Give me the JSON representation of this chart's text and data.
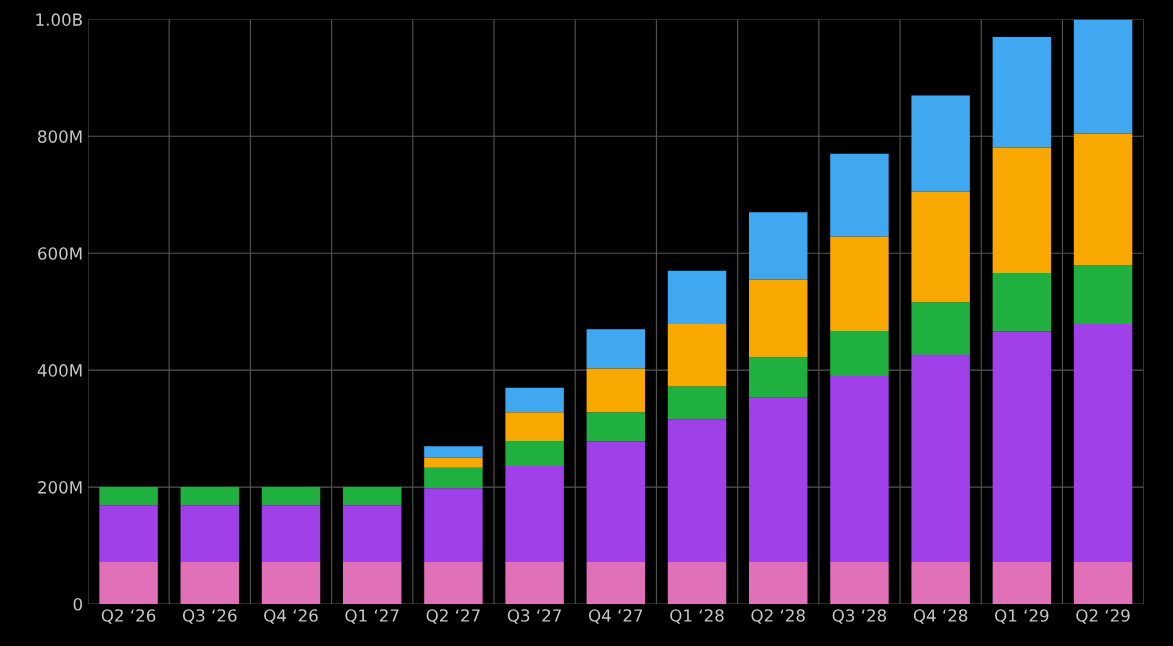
{
  "chart_data": {
    "type": "bar",
    "stacked": true,
    "categories": [
      "Q2 ‘26",
      "Q3 ‘26",
      "Q4 ‘26",
      "Q1 ‘27",
      "Q2 ‘27",
      "Q3 ‘27",
      "Q4 ‘27",
      "Q1 ‘28",
      "Q2 ‘28",
      "Q3 ‘28",
      "Q4 ‘28",
      "Q1 ‘29",
      "Q2 ‘29"
    ],
    "series": [
      {
        "color": "#e070b8",
        "values": [
          72000000,
          72000000,
          72000000,
          72000000,
          72000000,
          72000000,
          72000000,
          72000000,
          72000000,
          72000000,
          72000000,
          72000000,
          72000000
        ]
      },
      {
        "color": "#a040e8",
        "values": [
          97000000,
          97000000,
          97000000,
          97000000,
          126000000,
          164000000,
          206000000,
          244000000,
          281000000,
          318000000,
          354000000,
          394000000,
          407000000
        ]
      },
      {
        "color": "#20b040",
        "values": [
          31000000,
          31000000,
          31000000,
          31000000,
          35000000,
          43000000,
          50000000,
          56000000,
          69000000,
          77000000,
          90000000,
          100000000,
          100000000
        ]
      },
      {
        "color": "#f8a800",
        "values": [
          null,
          null,
          null,
          null,
          17000000,
          49000000,
          75000000,
          107000000,
          133000000,
          161000000,
          189000000,
          215000000,
          226000000
        ]
      },
      {
        "color": "#40a8f0",
        "values": [
          null,
          null,
          null,
          null,
          20000000,
          42000000,
          67000000,
          91000000,
          115000000,
          142000000,
          165000000,
          189000000,
          195000000
        ]
      }
    ],
    "ylim": [
      0,
      1000000000
    ],
    "yticks": [
      0,
      {
        "value": 200000000,
        "label": "200M"
      },
      {
        "value": 400000000,
        "label": "400M"
      },
      {
        "value": 600000000,
        "label": "600M"
      },
      {
        "value": 800000000,
        "label": "800M"
      },
      {
        "value": 1000000000,
        "label": "1.00B"
      }
    ],
    "grid": true,
    "legend": false
  }
}
